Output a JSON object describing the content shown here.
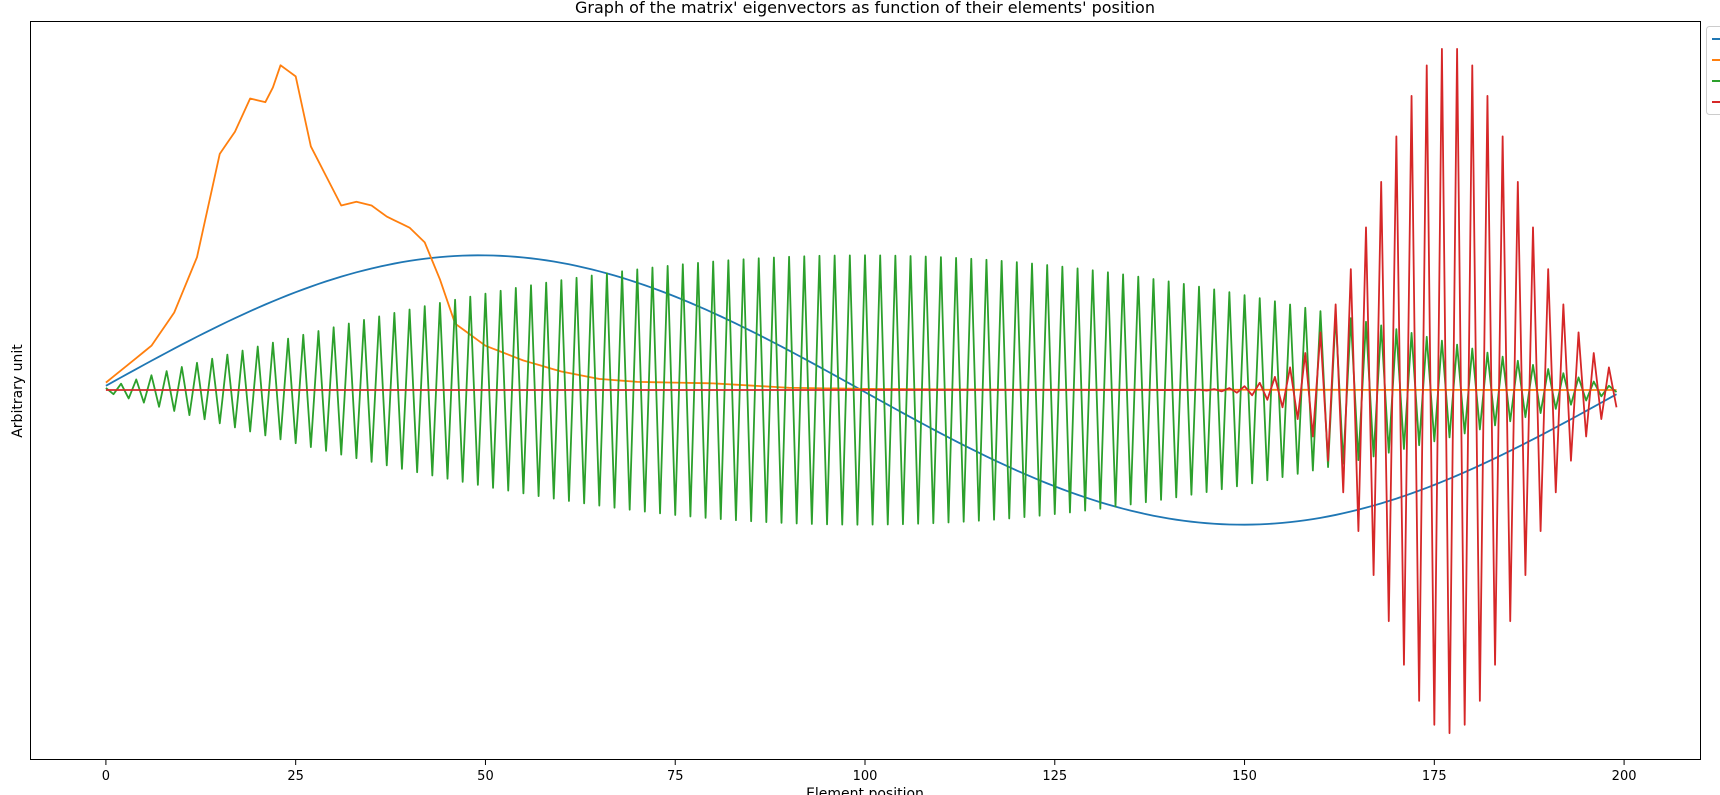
{
  "chart_data": {
    "type": "line",
    "title": "Graph of the matrix' eigenvectors as function of their elements' position",
    "xlabel": "Element position",
    "ylabel": "Arbitrary unit",
    "xlim": [
      -10,
      210
    ],
    "ylim": [
      -1.0,
      1.0
    ],
    "xticks": [
      0,
      25,
      50,
      75,
      100,
      125,
      150,
      175,
      200
    ],
    "yticks_shown": false,
    "grid": false,
    "legend": {
      "location": "upper-right-outside",
      "labels_visible": false,
      "entries": 4
    },
    "n_points": 200,
    "series": [
      {
        "color": "#1f77b4",
        "shape": "sine-half-wave",
        "amplitude": 0.365,
        "period_points": 201,
        "offset": 0.0
      },
      {
        "color": "#ff7f0e",
        "shape": "localized-peak",
        "knots": [
          [
            0,
            0.02
          ],
          [
            3,
            0.07
          ],
          [
            6,
            0.12
          ],
          [
            9,
            0.21
          ],
          [
            12,
            0.36
          ],
          [
            15,
            0.64
          ],
          [
            17,
            0.7
          ],
          [
            19,
            0.79
          ],
          [
            21,
            0.78
          ],
          [
            22,
            0.82
          ],
          [
            23,
            0.88
          ],
          [
            25,
            0.85
          ],
          [
            27,
            0.66
          ],
          [
            29,
            0.58
          ],
          [
            31,
            0.5
          ],
          [
            33,
            0.51
          ],
          [
            35,
            0.5
          ],
          [
            37,
            0.47
          ],
          [
            40,
            0.44
          ],
          [
            42,
            0.4
          ],
          [
            44,
            0.3
          ],
          [
            46,
            0.18
          ],
          [
            50,
            0.12
          ],
          [
            55,
            0.08
          ],
          [
            60,
            0.05
          ],
          [
            65,
            0.03
          ],
          [
            70,
            0.022
          ],
          [
            80,
            0.018
          ],
          [
            90,
            0.006
          ],
          [
            100,
            0.003
          ],
          [
            120,
            0.001
          ],
          [
            199,
            0.0
          ]
        ]
      },
      {
        "color": "#2ca02c",
        "shape": "alternating-sine-envelope",
        "amplitude": 0.365,
        "period_points": 201,
        "offset": 0.0
      },
      {
        "color": "#d62728",
        "shape": "alternating-localized-burst",
        "center": 177,
        "width": 9,
        "amplitude": 0.93
      }
    ]
  }
}
